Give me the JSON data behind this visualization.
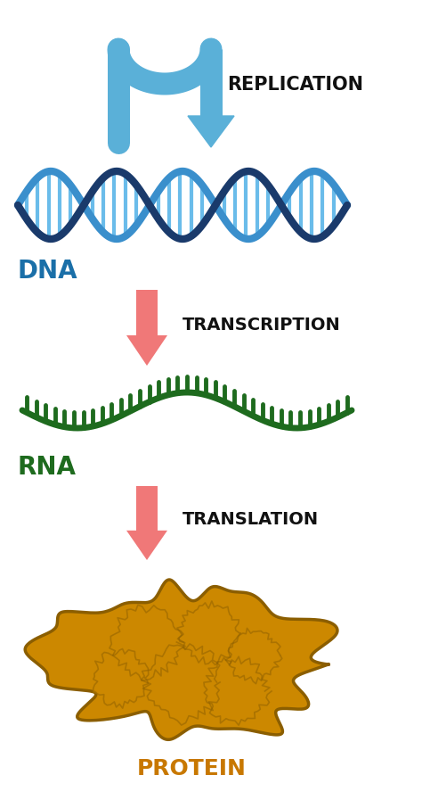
{
  "bg_color": "#ffffff",
  "replication_label": "REPLICATION",
  "replication_label_color": "#111111",
  "replication_arrow_color": "#5ab0d8",
  "replication_arrow_fill": "#7ec8e3",
  "dna_label": "DNA",
  "dna_label_color": "#1a6fa8",
  "dna_strand1_color": "#1a3a6b",
  "dna_strand2_color": "#3a8fcc",
  "dna_rung_color": "#5ab5e8",
  "transcription_label": "TRANSCRIPTION",
  "transcription_label_color": "#111111",
  "transcription_arrow_color": "#f07878",
  "rna_label": "RNA",
  "rna_label_color": "#1e6b1e",
  "rna_strand_color": "#1e6b1e",
  "rna_tooth_color": "#1e6b1e",
  "translation_label": "TRANSLATION",
  "translation_label_color": "#111111",
  "translation_arrow_color": "#f07878",
  "protein_label": "PROTEIN",
  "protein_label_color": "#c87800",
  "protein_color": "#cc8800",
  "protein_edge_color": "#8b5e00",
  "protein_highlight": "#e8a020"
}
